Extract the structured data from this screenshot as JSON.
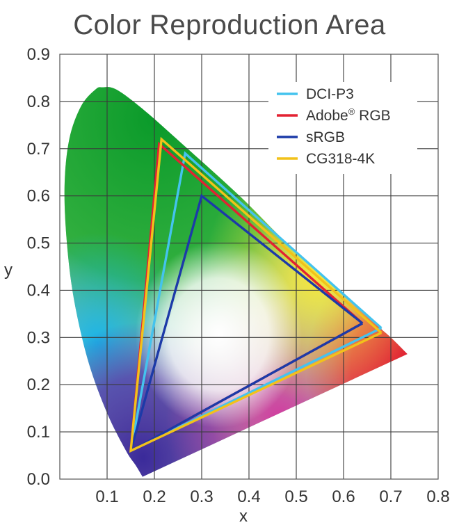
{
  "chart_data": {
    "type": "line",
    "title": "Color Reproduction Area",
    "xlabel": "x",
    "ylabel": "y",
    "xlim": [
      0.0,
      0.8
    ],
    "ylim": [
      0.0,
      0.9
    ],
    "xticks": [
      "0.1",
      "0.2",
      "0.3",
      "0.4",
      "0.5",
      "0.6",
      "0.7",
      "0.8"
    ],
    "yticks": [
      "0.0",
      "0.1",
      "0.2",
      "0.3",
      "0.4",
      "0.5",
      "0.6",
      "0.7",
      "0.8",
      "0.9"
    ],
    "grid": true,
    "legend_position": "top-right",
    "spectral_locus": {
      "x": [
        0.175,
        0.172,
        0.16,
        0.14,
        0.1,
        0.06,
        0.03,
        0.015,
        0.01,
        0.02,
        0.045,
        0.075,
        0.09,
        0.12,
        0.18,
        0.27,
        0.38,
        0.48,
        0.59,
        0.66,
        0.7,
        0.735
      ],
      "y": [
        0.005,
        0.01,
        0.03,
        0.06,
        0.14,
        0.25,
        0.38,
        0.5,
        0.62,
        0.72,
        0.79,
        0.825,
        0.83,
        0.825,
        0.78,
        0.7,
        0.6,
        0.5,
        0.4,
        0.335,
        0.3,
        0.265
      ]
    },
    "series": [
      {
        "name": "DCI-P3",
        "color": "#44c3ee",
        "x": [
          0.68,
          0.265,
          0.15,
          0.68
        ],
        "y": [
          0.32,
          0.69,
          0.06,
          0.32
        ]
      },
      {
        "name": "Adobe® RGB",
        "color": "#e32232",
        "x": [
          0.64,
          0.21,
          0.15,
          0.64
        ],
        "y": [
          0.33,
          0.71,
          0.06,
          0.33
        ]
      },
      {
        "name": "sRGB",
        "color": "#1c3aa8",
        "x": [
          0.64,
          0.3,
          0.15,
          0.64
        ],
        "y": [
          0.33,
          0.6,
          0.06,
          0.33
        ]
      },
      {
        "name": "CG318-4K",
        "color": "#f2c21a",
        "x": [
          0.68,
          0.215,
          0.15,
          0.68
        ],
        "y": [
          0.31,
          0.72,
          0.06,
          0.31
        ]
      }
    ],
    "legend": [
      {
        "label": "DCI-P3",
        "color": "#44c3ee"
      },
      {
        "label": "Adobe",
        "sup": "®",
        "label_suffix": " RGB",
        "color": "#e32232"
      },
      {
        "label": "sRGB",
        "color": "#1c3aa8"
      },
      {
        "label": "CG318-4K",
        "color": "#f2c21a"
      }
    ]
  }
}
